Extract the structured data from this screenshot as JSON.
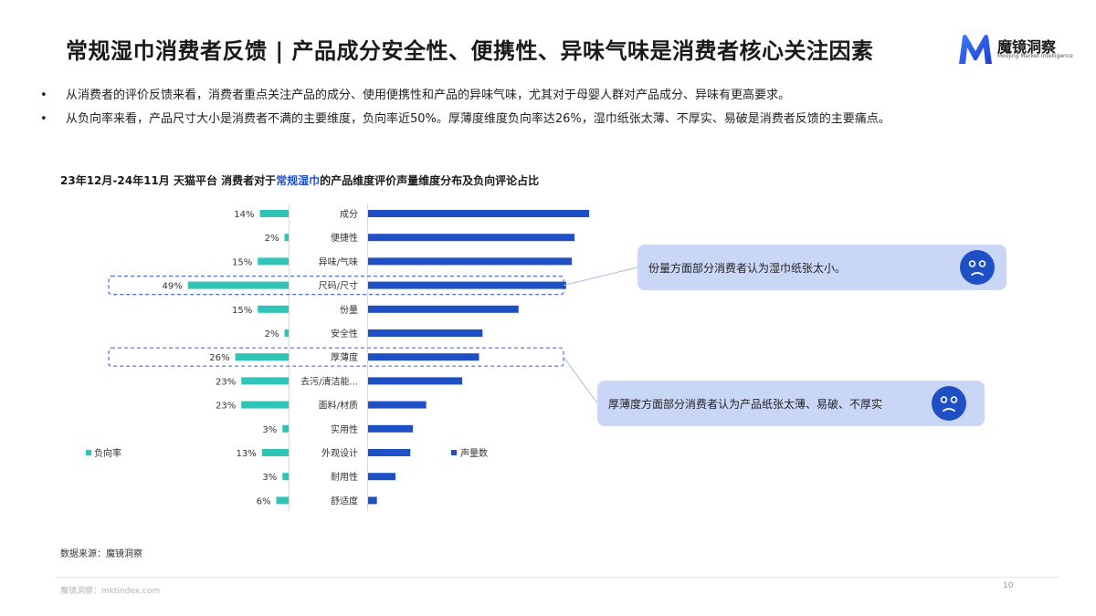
{
  "header": {
    "title": "常规湿巾消费者反馈 | 产品成分安全性、便携性、异味气味是消费者核心关注因素",
    "logo_name": "魔镜洞察",
    "logo_sub": "Moojing Market Intelligence"
  },
  "bullets": [
    "从消费者的评价反馈来看，消费者重点关注产品的成分、使用便携性和产品的异味气味，尤其对于母婴人群对产品成分、异味有更高要求。",
    "从负向率来看，产品尺寸大小是消费者不满的主要维度，负向率近50%。厚薄度维度负向率达26%，湿巾纸张太薄、不厚实、易破是消费者反馈的主要痛点。"
  ],
  "bullet_marker": "•",
  "chart_title": {
    "before": "23年12月-24年11月 天猫平台 消费者对于",
    "highlight": "常规湿巾",
    "after": "的产品维度评价声量维度分布及负向评论占比"
  },
  "chart_data": {
    "type": "bar",
    "categories": [
      "成分",
      "便捷性",
      "异味/气味",
      "尺码/尺寸",
      "份量",
      "安全性",
      "厚薄度",
      "去污/清洁能...",
      "面料/材质",
      "实用性",
      "外观设计",
      "耐用性",
      "舒适度"
    ],
    "series": [
      {
        "name": "负向率",
        "values": [
          14,
          2,
          15,
          49,
          15,
          2,
          26,
          23,
          23,
          3,
          13,
          3,
          6
        ],
        "labels": [
          "14%",
          "2%",
          "15%",
          "49%",
          "15%",
          "2%",
          "26%",
          "23%",
          "23%",
          "3%",
          "13%",
          "3%",
          "6%"
        ],
        "color": "#2ec4b6"
      },
      {
        "name": "声量数",
        "values": [
          100,
          93.4,
          92.2,
          89.6,
          68.1,
          51.8,
          50.2,
          42.6,
          26.3,
          20.3,
          19.1,
          12.4,
          4.0
        ],
        "color": "#1f4fc4"
      }
    ],
    "highlighted": [
      "尺码/尺寸",
      "厚薄度"
    ],
    "legend_position": "middle"
  },
  "callouts": [
    {
      "text": "份量方面部分消费者认为湿巾纸张太小。"
    },
    {
      "text": "厚薄度方面部分消费者认为产品纸张太薄、易破、不厚实"
    }
  ],
  "source": "数据来源：魔镜洞察",
  "footer": {
    "url": "魔镜洞察：mktindex.com",
    "page": "10"
  }
}
